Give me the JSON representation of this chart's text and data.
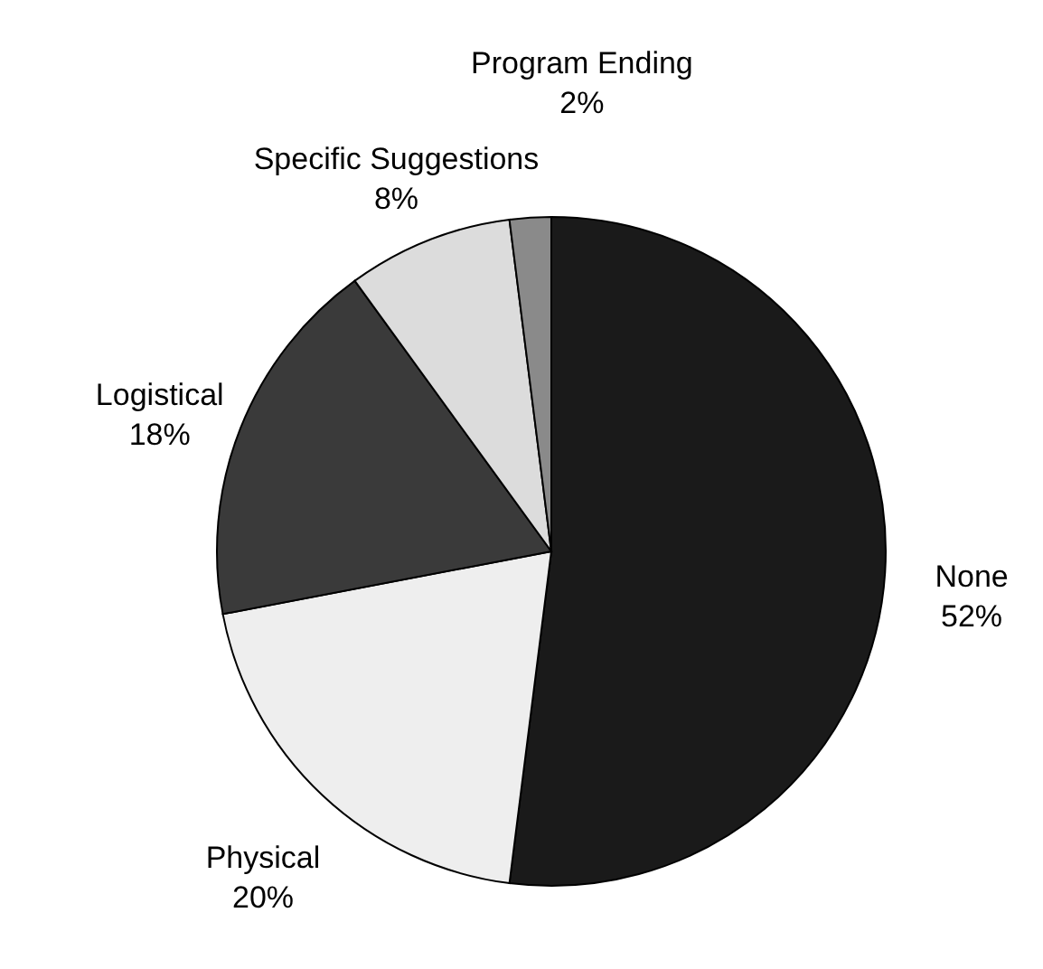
{
  "chart_data": {
    "type": "pie",
    "categories": [
      "None",
      "Physical",
      "Logistical",
      "Specific Suggestions",
      "Program Ending"
    ],
    "values": [
      52,
      20,
      18,
      8,
      2
    ],
    "value_labels": [
      "52%",
      "20%",
      "18%",
      "8%",
      "2%"
    ],
    "colors": [
      "#1a1a1a",
      "#eeeeee",
      "#3a3a3a",
      "#dcdcdc",
      "#8a8a8a"
    ]
  }
}
